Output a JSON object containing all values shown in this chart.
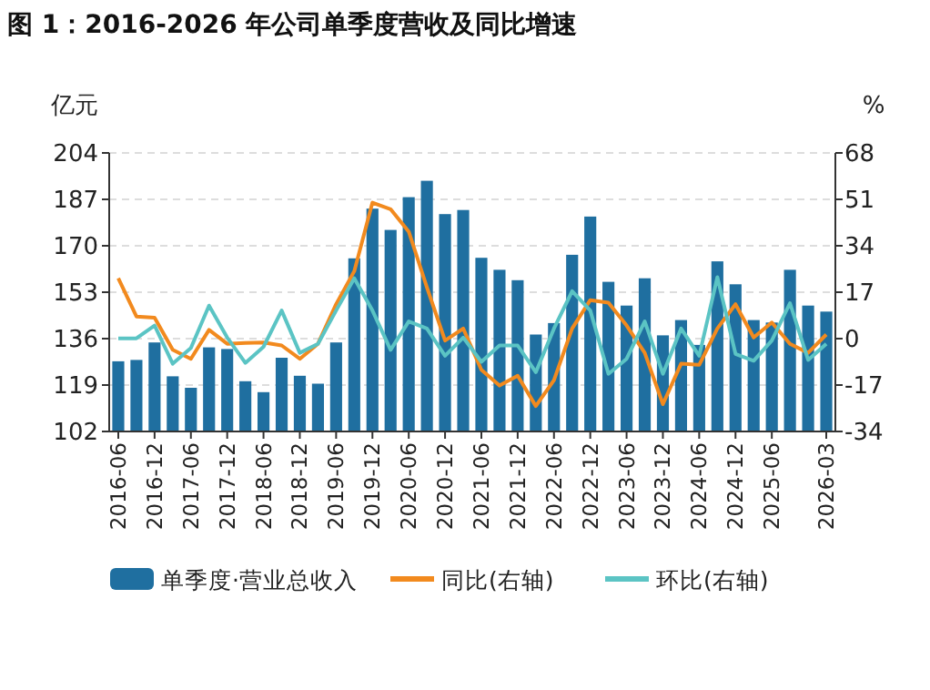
{
  "chart_data": {
    "type": "bar",
    "title": "图 1：2016-2026 年公司单季度营收及同比增速",
    "ylabel": "亿元",
    "y2label": "%",
    "categories": [
      "2016-06",
      null,
      "2016-12",
      null,
      "2017-06",
      null,
      "2017-12",
      null,
      "2018-06",
      null,
      "2018-12",
      null,
      "2019-06",
      null,
      "2019-12",
      null,
      "2020-06",
      null,
      "2020-12",
      null,
      "2021-06",
      null,
      "2021-12",
      null,
      "2022-06",
      null,
      "2022-12",
      null,
      "2023-06",
      null,
      "2023-12",
      null,
      "2024-06",
      null,
      "2024-12",
      null,
      "2025-06",
      null,
      null,
      "2026-03"
    ],
    "series": [
      {
        "name": "单季度·营业总收入",
        "color": "#1f6fa0",
        "values": [
          127.7,
          128.2,
          134.6,
          122.2,
          118,
          132.8,
          132.2,
          120.4,
          116.4,
          129,
          122.4,
          119.5,
          134.6,
          165.4,
          183.6,
          175.8,
          187.8,
          193.8,
          181.6,
          183.1,
          165.6,
          161.2,
          157.4,
          137.5,
          141.7,
          166.7,
          180.7,
          156.8,
          148.1,
          158.1,
          137.2,
          142.8,
          133.7,
          164.3,
          155.9,
          142.8,
          141.9,
          161.2,
          148.1,
          145.9
        ]
      },
      {
        "name": "同比(右轴)",
        "type": "line",
        "axis": "y2",
        "color": "#f28a1e",
        "values": [
          22.1,
          8.1,
          7.7,
          -4.1,
          -7.4,
          3.2,
          -1.9,
          -1.6,
          -1.4,
          -2.5,
          -7.4,
          -1.9,
          12.6,
          24.7,
          49.8,
          47.4,
          39.2,
          18.8,
          -0.7,
          3.7,
          -11.4,
          -17.2,
          -13.6,
          -24.7,
          -15.2,
          3.7,
          14.1,
          13.2,
          4.8,
          -5.2,
          -24,
          -9.2,
          -9.6,
          3.7,
          12.6,
          0.4,
          5.9,
          -1.9,
          -5.2,
          1.5
        ]
      },
      {
        "name": "环比(右轴)",
        "type": "line",
        "axis": "y2",
        "color": "#5bc4c4",
        "values": [
          0.1,
          0.1,
          4.8,
          -9.2,
          -3.4,
          12.1,
          0.4,
          -8.9,
          -3,
          10.3,
          -5.2,
          -1.9,
          10.3,
          22.1,
          10.3,
          -4.1,
          6.3,
          3.7,
          -6.3,
          0.4,
          -8.5,
          -2.5,
          -2.5,
          -12.3,
          3.7,
          17.4,
          10.3,
          -12.9,
          -7.4,
          6.3,
          -12.9,
          3.7,
          -6.3,
          22.5,
          -5.6,
          -8.1,
          -0.7,
          13,
          -7.8,
          -1.9
        ]
      }
    ],
    "ylim": [
      102,
      204
    ],
    "yticks": [
      102,
      119,
      136,
      153,
      170,
      187,
      204
    ],
    "y2lim": [
      -34,
      68
    ],
    "y2ticks": [
      -34,
      -17,
      0,
      17,
      34,
      51,
      68
    ],
    "grid": "y",
    "legend": "bottom"
  }
}
